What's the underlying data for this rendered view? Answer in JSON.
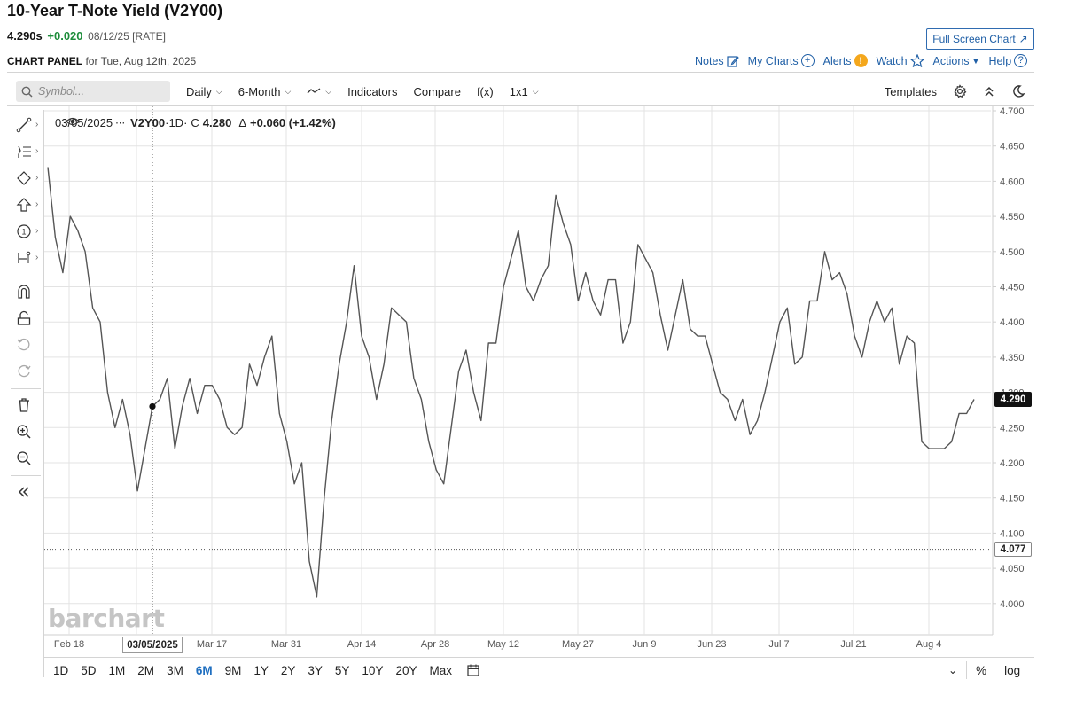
{
  "header": {
    "title": "10-Year T-Note Yield (V2Y00)",
    "last": "4.290s",
    "change": "+0.020",
    "meta": "08/12/25 [RATE]",
    "fullscreen_label": "Full Screen Chart",
    "panel_label": "CHART PANEL",
    "panel_date": "for Tue, Aug 12th, 2025"
  },
  "links": {
    "notes": "Notes",
    "my_charts": "My Charts",
    "alerts": "Alerts",
    "watch": "Watch",
    "actions": "Actions",
    "help": "Help"
  },
  "toolbar": {
    "search_placeholder": "Symbol...",
    "interval": "Daily",
    "period": "6-Month",
    "indicators": "Indicators",
    "compare": "Compare",
    "fx": "f(x)",
    "layout": "1x1",
    "templates": "Templates"
  },
  "legend": {
    "date": "03/05/2025",
    "symbol": "V2Y00",
    "interval": "·1D·",
    "close_label": "C",
    "close": "4.280",
    "delta_label": "Δ",
    "delta": "+0.060 (+1.42%)"
  },
  "tags": {
    "last_price": "4.290",
    "crosshair_price": "4.077",
    "crosshair_date": "03/05/2025"
  },
  "watermark": "barchart",
  "chart_data": {
    "type": "line",
    "y_ticks": [
      "4.700",
      "4.650",
      "4.600",
      "4.550",
      "4.500",
      "4.450",
      "4.400",
      "4.350",
      "4.300",
      "4.250",
      "4.200",
      "4.150",
      "4.100",
      "4.050",
      "4.000"
    ],
    "x_ticks": [
      "Feb 18",
      "Mar 17",
      "Mar 31",
      "Apr 14",
      "Apr 28",
      "May 12",
      "May 27",
      "Jun 9",
      "Jun 23",
      "Jul 7",
      "Jul 21",
      "Aug 4"
    ],
    "ylim": [
      3.95,
      4.7
    ],
    "y": [
      4.62,
      4.52,
      4.47,
      4.55,
      4.53,
      4.5,
      4.42,
      4.4,
      4.3,
      4.25,
      4.29,
      4.24,
      4.16,
      4.22,
      4.28,
      4.29,
      4.32,
      4.22,
      4.28,
      4.32,
      4.27,
      4.31,
      4.31,
      4.29,
      4.25,
      4.24,
      4.25,
      4.34,
      4.31,
      4.35,
      4.38,
      4.27,
      4.23,
      4.17,
      4.2,
      4.06,
      4.01,
      4.15,
      4.26,
      4.34,
      4.4,
      4.48,
      4.38,
      4.35,
      4.29,
      4.34,
      4.42,
      4.41,
      4.4,
      4.32,
      4.29,
      4.23,
      4.19,
      4.17,
      4.25,
      4.33,
      4.36,
      4.3,
      4.26,
      4.37,
      4.37,
      4.45,
      4.49,
      4.53,
      4.45,
      4.43,
      4.46,
      4.48,
      4.58,
      4.54,
      4.51,
      4.43,
      4.47,
      4.43,
      4.41,
      4.46,
      4.46,
      4.37,
      4.4,
      4.51,
      4.49,
      4.47,
      4.41,
      4.36,
      4.41,
      4.46,
      4.39,
      4.38,
      4.38,
      4.34,
      4.3,
      4.29,
      4.26,
      4.29,
      4.24,
      4.26,
      4.3,
      4.35,
      4.4,
      4.42,
      4.34,
      4.35,
      4.43,
      4.43,
      4.5,
      4.46,
      4.47,
      4.44,
      4.38,
      4.35,
      4.4,
      4.43,
      4.4,
      4.42,
      4.34,
      4.38,
      4.37,
      4.23,
      4.22,
      4.22,
      4.22,
      4.23,
      4.27,
      4.27,
      4.29
    ],
    "highlight": {
      "date": "03/05/2025",
      "value": 4.28
    },
    "crosshair_value": 4.077,
    "last_value": 4.29,
    "grid": true
  },
  "ranges": {
    "items": [
      "1D",
      "5D",
      "1M",
      "2M",
      "3M",
      "6M",
      "9M",
      "1Y",
      "2Y",
      "3Y",
      "5Y",
      "10Y",
      "20Y",
      "Max"
    ],
    "active": "6M",
    "percent": "%",
    "log": "log"
  }
}
